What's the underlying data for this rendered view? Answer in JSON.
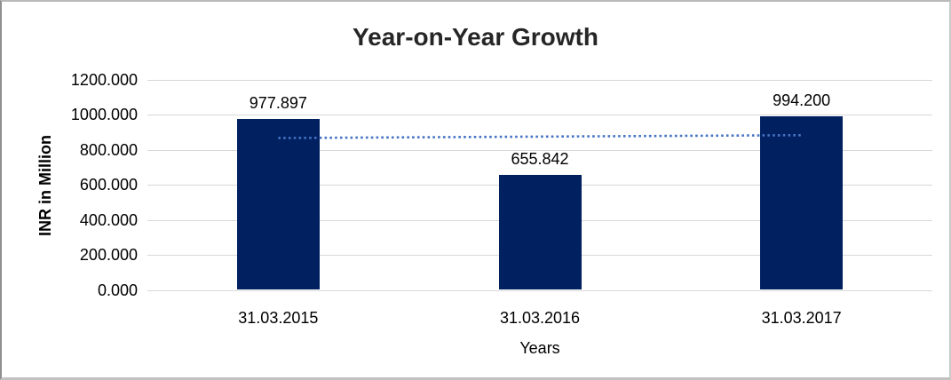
{
  "chart_data": {
    "type": "bar",
    "title": "Year-on-Year Growth",
    "categories": [
      "31.03.2015",
      "31.03.2016",
      "31.03.2017"
    ],
    "values": [
      977.897,
      655.842,
      994.2
    ],
    "data_labels": [
      "977.897",
      "655.842",
      "994.200"
    ],
    "xlabel": "Years",
    "ylabel": "INR in Million",
    "ylim": [
      0,
      1200
    ],
    "ytick_step": 200,
    "ytick_labels": [
      "0.000",
      "200.000",
      "400.000",
      "600.000",
      "800.000",
      "1000.000",
      "1200.000"
    ],
    "grid": true,
    "legend": "none",
    "trendline": {
      "type": "linear",
      "style": "dotted",
      "start_value": 867.8,
      "end_value": 884.1
    }
  },
  "colors": {
    "bar": "#002060",
    "trendline": "#4472C4",
    "gridline": "#D9D9D9",
    "title_text": "#262626",
    "axis_text": "#000000",
    "frame_border": "#A9A9A9",
    "background": "#FFFFFF"
  }
}
